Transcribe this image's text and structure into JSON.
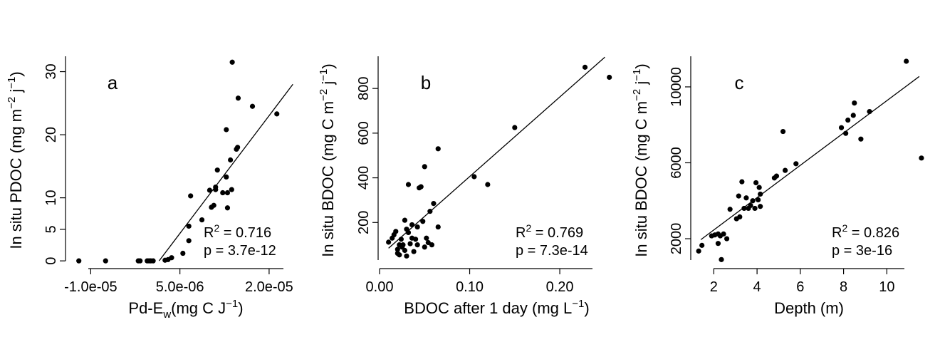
{
  "chart_data": [
    {
      "type": "scatter",
      "panel_label": "a",
      "title": "",
      "xlabel": {
        "base": "Pd-E",
        "sub": "w",
        "units": "(mg C J",
        "sup": "−1",
        "close": ")"
      },
      "ylabel": "In situ PDOC (mg m^-2 j^-1)",
      "ylabel_parts": [
        "In situ PDOC (mg m",
        "−2",
        " j",
        "−1",
        ")"
      ],
      "xlim": [
        -1.4e-05,
        2.6e-05
      ],
      "ylim": [
        -1,
        33
      ],
      "xticks": [
        -1e-05,
        5e-06,
        2e-05
      ],
      "xtick_labels": [
        "-1.0e-05",
        "5.0e-06",
        "2.0e-05"
      ],
      "yticks": [
        0,
        5,
        10,
        20,
        30
      ],
      "ytick_labels": [
        "0",
        "5",
        "10",
        "20",
        "30"
      ],
      "stats": {
        "r2_label": "R",
        "r2_sup": "2",
        "r2_value": "= 0.716",
        "p": "p = 3.7e-12"
      },
      "fit": {
        "x": [
          1.5e-06,
          2.4e-05
        ],
        "y": [
          0,
          28
        ]
      },
      "points": [
        [
          -1.2e-05,
          0
        ],
        [
          -7.5e-06,
          0
        ],
        [
          -2e-06,
          0
        ],
        [
          -1.7e-06,
          0
        ],
        [
          -5e-07,
          0
        ],
        [
          -2e-07,
          0
        ],
        [
          1e-07,
          0
        ],
        [
          5e-07,
          0
        ],
        [
          2.5e-06,
          0.1
        ],
        [
          3e-06,
          0.2
        ],
        [
          3.6e-06,
          0.5
        ],
        [
          5.5e-06,
          1.2
        ],
        [
          6.5e-06,
          3.2
        ],
        [
          6.5e-06,
          5.5
        ],
        [
          6.8e-06,
          10.3
        ],
        [
          8.7e-06,
          6.5
        ],
        [
          1e-05,
          11.2
        ],
        [
          1.03e-05,
          8.5
        ],
        [
          1.07e-05,
          8.8
        ],
        [
          1.1e-05,
          11.3
        ],
        [
          1.1e-05,
          11.7
        ],
        [
          1.13e-05,
          14.4
        ],
        [
          1.22e-05,
          10.8
        ],
        [
          1.28e-05,
          13.3
        ],
        [
          1.28e-05,
          20.8
        ],
        [
          1.3e-05,
          8.4
        ],
        [
          1.3e-05,
          10.8
        ],
        [
          1.35e-05,
          16
        ],
        [
          1.37e-05,
          11.3
        ],
        [
          1.38e-05,
          31.5
        ],
        [
          1.45e-05,
          17.7
        ],
        [
          1.47e-05,
          18
        ],
        [
          1.48e-05,
          25.8
        ],
        [
          1.72e-05,
          24.5
        ],
        [
          2.13e-05,
          23.3
        ]
      ]
    },
    {
      "type": "scatter",
      "panel_label": "b",
      "title": "",
      "xlabel": {
        "base": "BDOC after 1 day (mg L",
        "sub": "",
        "units": "",
        "sup": "−1",
        "close": ")"
      },
      "ylabel": "In situ BDOC (mg C m^-2 j^-1)",
      "ylabel_parts": [
        "In situ BDOC (mg C m",
        "−2",
        " j",
        "−1",
        ")"
      ],
      "xlim": [
        0,
        0.26
      ],
      "ylim": [
        0,
        960
      ],
      "xticks": [
        0.0,
        0.1,
        0.2
      ],
      "xtick_labels": [
        "0.00",
        "0.10",
        "0.20"
      ],
      "yticks": [
        200,
        400,
        600,
        800
      ],
      "ytick_labels": [
        "200",
        "400",
        "600",
        "800"
      ],
      "stats": {
        "r2_label": "R",
        "r2_sup": "2",
        "r2_value": "= 0.769",
        "p": "p = 7.3e-14"
      },
      "fit": {
        "x": [
          0.01,
          0.25
        ],
        "y": [
          85,
          940
        ]
      },
      "points": [
        [
          0.01,
          112
        ],
        [
          0.014,
          130
        ],
        [
          0.016,
          145
        ],
        [
          0.018,
          160
        ],
        [
          0.02,
          62
        ],
        [
          0.02,
          80
        ],
        [
          0.022,
          100
        ],
        [
          0.022,
          55
        ],
        [
          0.024,
          125
        ],
        [
          0.025,
          90
        ],
        [
          0.026,
          100
        ],
        [
          0.028,
          75
        ],
        [
          0.028,
          210
        ],
        [
          0.03,
          50
        ],
        [
          0.03,
          170
        ],
        [
          0.032,
          155
        ],
        [
          0.032,
          370
        ],
        [
          0.034,
          105
        ],
        [
          0.036,
          190
        ],
        [
          0.036,
          130
        ],
        [
          0.038,
          70
        ],
        [
          0.04,
          125
        ],
        [
          0.042,
          100
        ],
        [
          0.042,
          180
        ],
        [
          0.044,
          355
        ],
        [
          0.046,
          360
        ],
        [
          0.048,
          205
        ],
        [
          0.05,
          450
        ],
        [
          0.05,
          90
        ],
        [
          0.052,
          130
        ],
        [
          0.054,
          110
        ],
        [
          0.056,
          250
        ],
        [
          0.058,
          100
        ],
        [
          0.06,
          285
        ],
        [
          0.065,
          180
        ],
        [
          0.065,
          530
        ],
        [
          0.105,
          405
        ],
        [
          0.12,
          370
        ],
        [
          0.15,
          625
        ],
        [
          0.228,
          895
        ],
        [
          0.255,
          850
        ]
      ]
    },
    {
      "type": "scatter",
      "panel_label": "c",
      "title": "",
      "xlabel": {
        "base": "Depth (m)",
        "sub": "",
        "units": "",
        "sup": "",
        "close": ""
      },
      "ylabel": "In situ BDOC (mg C m^-2 j^-1)",
      "ylabel_parts": [
        "In situ BDOC (mg C m",
        "−2",
        " j",
        "−1",
        ")"
      ],
      "xlim": [
        1.0,
        11.8
      ],
      "ylim": [
        500,
        11800
      ],
      "xticks": [
        2,
        4,
        6,
        8,
        10
      ],
      "xtick_labels": [
        "2",
        "4",
        "6",
        "8",
        "10"
      ],
      "yticks": [
        2000,
        6000,
        10000
      ],
      "ytick_labels": [
        "2000",
        "6000",
        "10000"
      ],
      "stats": {
        "r2_label": "R",
        "r2_sup": "2",
        "r2_value": "= 0.826",
        "p": "p = 3e-16"
      },
      "fit": {
        "x": [
          1.4,
          11.5
        ],
        "y": [
          1950,
          10550
        ]
      },
      "points": [
        [
          1.3,
          1350
        ],
        [
          1.45,
          1650
        ],
        [
          1.9,
          2150
        ],
        [
          2.05,
          2200
        ],
        [
          2.2,
          1750
        ],
        [
          2.2,
          2250
        ],
        [
          2.3,
          2150
        ],
        [
          2.35,
          900
        ],
        [
          2.45,
          2250
        ],
        [
          2.6,
          2000
        ],
        [
          2.75,
          3550
        ],
        [
          3.05,
          3050
        ],
        [
          3.15,
          4250
        ],
        [
          3.2,
          3150
        ],
        [
          3.3,
          5000
        ],
        [
          3.4,
          3600
        ],
        [
          3.5,
          4150
        ],
        [
          3.6,
          3600
        ],
        [
          3.7,
          3750
        ],
        [
          3.8,
          4000
        ],
        [
          3.9,
          3600
        ],
        [
          3.95,
          4950
        ],
        [
          4.05,
          4050
        ],
        [
          4.1,
          4700
        ],
        [
          4.15,
          4350
        ],
        [
          4.15,
          3700
        ],
        [
          4.8,
          5200
        ],
        [
          4.9,
          5300
        ],
        [
          5.2,
          7650
        ],
        [
          5.3,
          5600
        ],
        [
          5.8,
          5950
        ],
        [
          7.9,
          7850
        ],
        [
          8.1,
          7550
        ],
        [
          8.2,
          8250
        ],
        [
          8.45,
          8500
        ],
        [
          8.5,
          9150
        ],
        [
          8.8,
          7250
        ],
        [
          9.2,
          8700
        ],
        [
          10.9,
          11350
        ],
        [
          11.6,
          6250
        ]
      ]
    }
  ]
}
